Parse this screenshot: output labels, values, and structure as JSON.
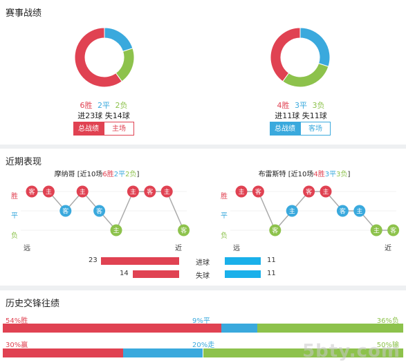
{
  "record": {
    "title": "赛事战绩",
    "left": {
      "win": "6胜",
      "draw": "2平",
      "loss": "2负",
      "goals": "进23球  失14球",
      "tab_active": "总战绩",
      "tab_other": "主场",
      "share": {
        "win": 6,
        "draw": 2,
        "loss": 2
      }
    },
    "right": {
      "win": "4胜",
      "draw": "3平",
      "loss": "3负",
      "goals": "进11球  失11球",
      "tab_active": "总战绩",
      "tab_other": "客场",
      "share": {
        "win": 4,
        "draw": 3,
        "loss": 3
      }
    }
  },
  "form": {
    "title": "近期表现",
    "left_team": "摩纳哥",
    "left_summary": {
      "pre": "[近10场",
      "w": "6胜",
      "d": "2平",
      "l": "2负",
      "post": "]"
    },
    "right_team": "布雷斯特",
    "right_summary": {
      "pre": "[近10场",
      "w": "4胜",
      "d": "3平",
      "l": "3负",
      "post": "]"
    },
    "row_win": "胜",
    "row_draw": "平",
    "row_loss": "负",
    "far": "远",
    "near": "近",
    "left_games": [
      {
        "r": "W",
        "t": "客"
      },
      {
        "r": "W",
        "t": "主"
      },
      {
        "r": "D",
        "t": "客"
      },
      {
        "r": "W",
        "t": "主"
      },
      {
        "r": "D",
        "t": "客"
      },
      {
        "r": "L",
        "t": "主"
      },
      {
        "r": "W",
        "t": "主"
      },
      {
        "r": "W",
        "t": "客"
      },
      {
        "r": "W",
        "t": "主"
      },
      {
        "r": "L",
        "t": "客"
      }
    ],
    "right_games": [
      {
        "r": "W",
        "t": "主"
      },
      {
        "r": "W",
        "t": "客"
      },
      {
        "r": "L",
        "t": "客"
      },
      {
        "r": "D",
        "t": "主"
      },
      {
        "r": "W",
        "t": "客"
      },
      {
        "r": "W",
        "t": "主"
      },
      {
        "r": "D",
        "t": "客"
      },
      {
        "r": "D",
        "t": "主"
      },
      {
        "r": "L",
        "t": "主"
      },
      {
        "r": "L",
        "t": "客"
      }
    ],
    "goals_for_label": "进球",
    "goals_against_label": "失球",
    "left_for": 23,
    "left_against": 14,
    "right_for": 11,
    "right_against": 11
  },
  "history": {
    "title": "历史交锋往绩",
    "row1": {
      "left": "54%胜",
      "mid": "9%平",
      "right": "36%负",
      "values": [
        54,
        9,
        36
      ]
    },
    "row2": {
      "left": "30%赢",
      "mid": "20%走",
      "right": "50%输",
      "values": [
        30,
        20,
        50
      ]
    }
  },
  "watermark": "5bty.com",
  "colors": {
    "win": "#e04252",
    "draw": "#3aa9dd",
    "loss": "#8dc24c",
    "blue_bar": "#1ab0ea"
  }
}
